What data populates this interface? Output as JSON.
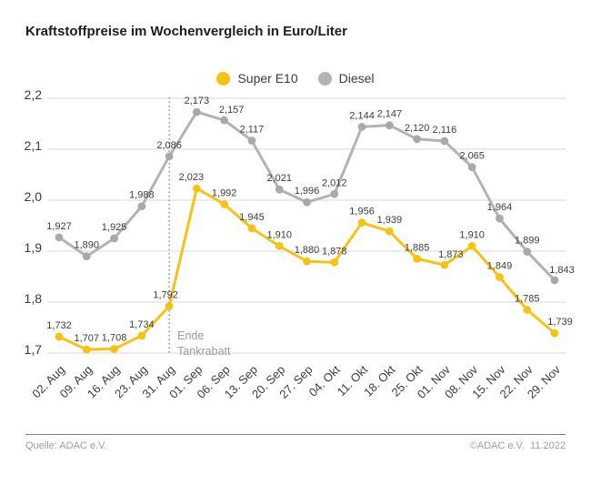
{
  "title": "Kraftstoffpreise im Wochenvergleich in Euro/Liter",
  "legend": {
    "items": [
      {
        "label": "Super E10",
        "color": "#f6c315"
      },
      {
        "label": "Diesel",
        "color": "#b3b3b3"
      }
    ]
  },
  "chart_data": {
    "type": "line",
    "title": "Kraftstoffpreise im Wochenvergleich in Euro/Liter",
    "xlabel": "",
    "ylabel": "Euro/Liter",
    "ylim": [
      1.7,
      2.2
    ],
    "y_tick_labels": [
      "2,2",
      "2,1",
      "2,0",
      "1,9",
      "1,8",
      "1,7"
    ],
    "grid": true,
    "legend_position": "top-center",
    "categories": [
      "02. Aug",
      "09. Aug",
      "16. Aug",
      "23. Aug",
      "31. Aug",
      "01. Sep",
      "06. Sep",
      "13. Sep",
      "20. Sep",
      "27. Sep",
      "04. Okt",
      "11. Okt",
      "18. Okt",
      "25. Okt",
      "01. Nov",
      "08. Nov",
      "15. Nov",
      "22. Nov",
      "29. Nov"
    ],
    "series": [
      {
        "name": "Super E10",
        "color": "#f6c315",
        "marker_color": "#f6c315",
        "values": [
          1.732,
          1.707,
          1.708,
          1.734,
          1.792,
          2.023,
          1.992,
          1.945,
          1.91,
          1.88,
          1.878,
          1.956,
          1.939,
          1.885,
          1.873,
          1.91,
          1.849,
          1.785,
          1.739
        ],
        "labels": [
          "1,732",
          "1,707",
          "1,708",
          "1,734",
          "1,792",
          "2,023",
          "1,992",
          "1,945",
          "1,910",
          "1,880",
          "1,878",
          "1,956",
          "1,939",
          "1,885",
          "1,873",
          "1,910",
          "1,849",
          "1,785",
          "1,739"
        ],
        "label_offsets": {
          "4": [
            -4,
            -9
          ],
          "5": [
            -6,
            -9
          ],
          "14": [
            7,
            -8
          ],
          "18": [
            6,
            -9
          ]
        }
      },
      {
        "name": "Diesel",
        "color": "#b3b3b3",
        "marker_color": "#a9a9a9",
        "values": [
          1.927,
          1.89,
          1.925,
          1.988,
          2.086,
          2.173,
          2.157,
          2.117,
          2.021,
          1.996,
          2.012,
          2.144,
          2.147,
          2.12,
          2.116,
          2.065,
          1.964,
          1.899,
          1.843
        ],
        "labels": [
          "1,927",
          "1,890",
          "1,925",
          "1,988",
          "2,086",
          "2,173",
          "2,157",
          "2,117",
          "2,021",
          "1,996",
          "2,012",
          "2,144",
          "2,147",
          "2,120",
          "2,116",
          "2,065",
          "1,964",
          "1,899",
          "1,843"
        ],
        "label_offsets": {
          "6": [
            8,
            -8
          ],
          "18": [
            8,
            -8
          ]
        }
      }
    ],
    "annotation": {
      "lines": [
        "Ende",
        "Tankrabatt"
      ],
      "category": "31. Aug",
      "category_index": 4
    }
  },
  "footer": {
    "source": "Quelle: ADAC e.V.",
    "copyright": "©ADAC e.V.  11.2022"
  }
}
